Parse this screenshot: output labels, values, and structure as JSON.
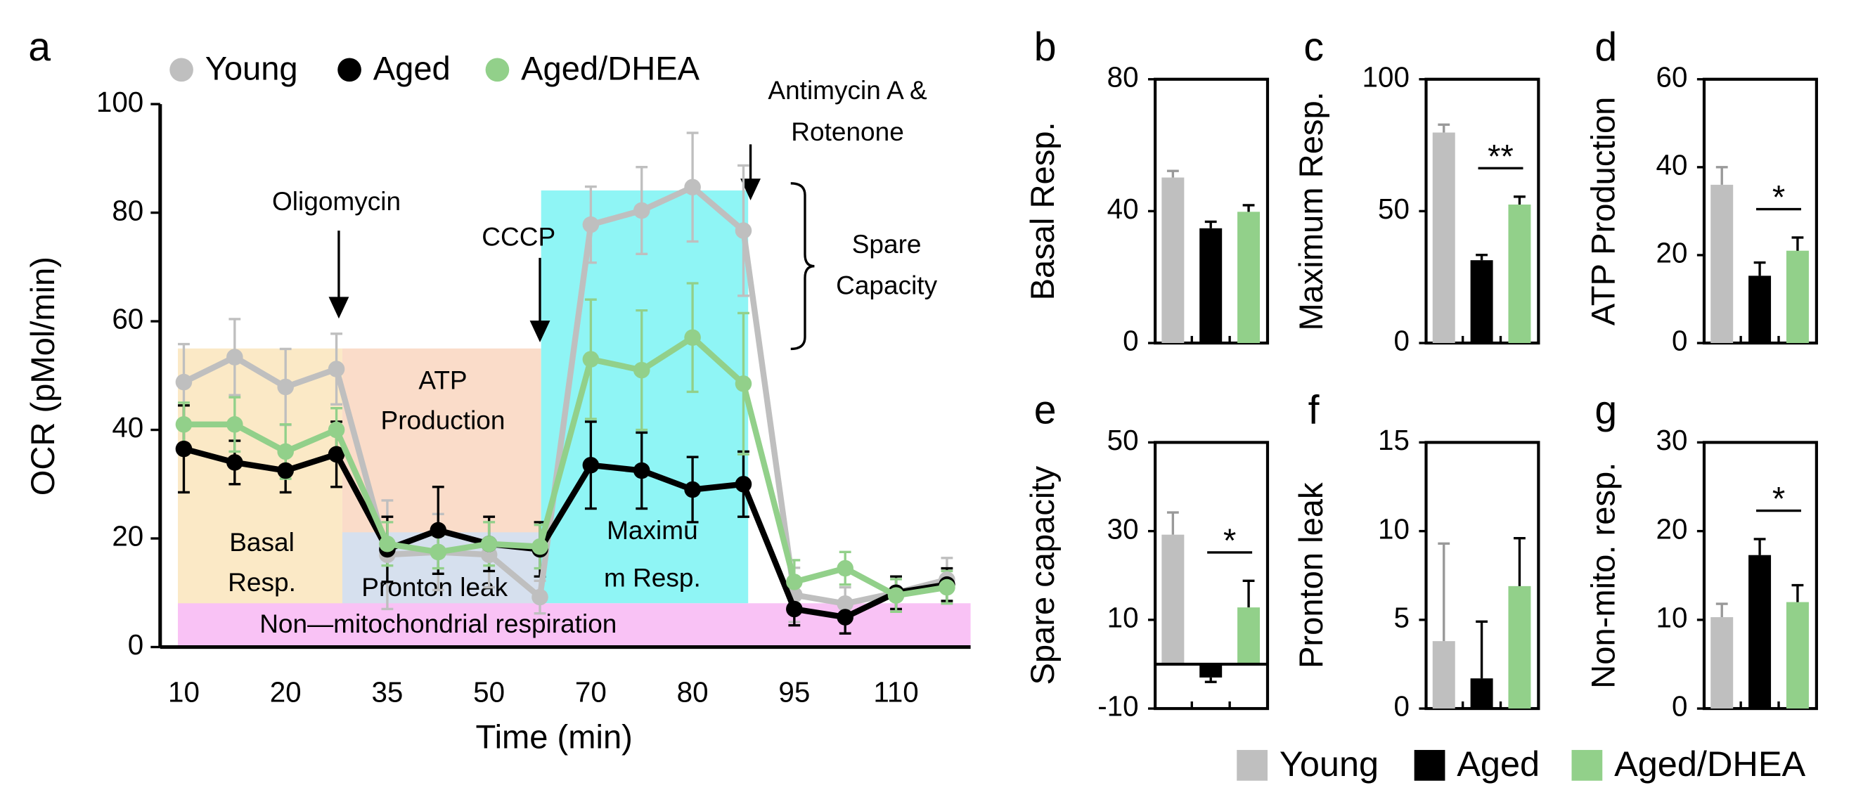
{
  "legend": {
    "series": [
      {
        "name": "Young",
        "color": "#bfbfbf"
      },
      {
        "name": "Aged",
        "color": "#000000"
      },
      {
        "name": "Aged/DHEA",
        "color": "#92d08a"
      }
    ]
  },
  "chart_data": [
    {
      "type": "line",
      "panel_label": "a",
      "x_label": "Time (min)",
      "y_label": "OCR (pMol/min)",
      "categories": [
        "10",
        null,
        "20",
        null,
        "35",
        null,
        "50",
        null,
        "70",
        null,
        "80",
        null,
        "95",
        null,
        "110",
        null
      ],
      "ylim": [
        0,
        100
      ],
      "yticks": [
        0,
        20,
        40,
        60,
        80,
        100
      ],
      "series": [
        {
          "name": "Young",
          "color": "#bfbfbf",
          "values": [
            48.8,
            53.4,
            47.9,
            51.2,
            17,
            17.5,
            17,
            9.2,
            77.8,
            80.4,
            84.7,
            76.7,
            9.6,
            8,
            10,
            12.4
          ],
          "errors": [
            7,
            7,
            7,
            6.5,
            10,
            7,
            6,
            3,
            7,
            8,
            10,
            12,
            5,
            3,
            3,
            4
          ]
        },
        {
          "name": "Aged",
          "color": "#000000",
          "values": [
            36.5,
            34,
            32.5,
            35.5,
            18,
            21.5,
            19,
            18,
            33.5,
            32.5,
            29,
            30,
            7,
            5.5,
            10,
            11.5
          ],
          "errors": [
            8,
            4,
            4,
            6,
            6,
            8,
            5,
            5,
            8,
            7,
            6,
            6,
            3,
            3,
            3,
            3
          ]
        },
        {
          "name": "Aged/DHEA",
          "color": "#92d08a",
          "values": [
            41,
            41,
            36,
            40,
            19,
            17.5,
            19,
            18.5,
            53,
            51,
            57,
            48.5,
            12,
            14.5,
            9.5,
            11
          ],
          "errors": [
            4,
            5,
            5,
            4,
            4,
            3,
            4,
            4,
            11,
            11,
            10,
            13,
            4,
            3,
            3,
            3
          ]
        }
      ],
      "annotations": {
        "oligomycin": "Oligomycin",
        "cccp": "CCCP",
        "antimycin": [
          "Antimycin A &",
          "Rotenone"
        ],
        "spare": [
          "Spare",
          "Capacity"
        ]
      },
      "regions": {
        "basal": [
          "Basal",
          "Resp."
        ],
        "atp": [
          "ATP",
          "Production"
        ],
        "leak": "Pronton leak",
        "maximum": [
          "Maximu",
          "m Resp."
        ],
        "non_mito": "Non—mitochondrial respiration"
      }
    },
    {
      "type": "bar",
      "panel_label": "b",
      "y_label": "Basal Resp.",
      "ylim": [
        0,
        80
      ],
      "yticks": [
        0,
        40,
        80
      ],
      "values": [
        50.2,
        34.8,
        39.8
      ],
      "errors": [
        2,
        2,
        2
      ]
    },
    {
      "type": "bar",
      "panel_label": "c",
      "y_label": "Maximum Resp.",
      "ylim": [
        0,
        100
      ],
      "yticks": [
        0,
        50,
        100
      ],
      "values": [
        79.8,
        31.4,
        52.5
      ],
      "errors": [
        3,
        2,
        3
      ],
      "significance": {
        "label": "**",
        "pair": [
          1,
          2
        ]
      }
    },
    {
      "type": "bar",
      "panel_label": "d",
      "y_label": "ATP Production",
      "ylim": [
        0,
        60
      ],
      "yticks": [
        0,
        20,
        40,
        60
      ],
      "values": [
        36,
        15.3,
        21
      ],
      "errors": [
        4,
        3,
        3
      ],
      "significance": {
        "label": "*",
        "pair": [
          1,
          2
        ]
      }
    },
    {
      "type": "bar",
      "panel_label": "e",
      "y_label": "Spare capacity",
      "ylim": [
        -10,
        50
      ],
      "yticks": [
        -10,
        10,
        30,
        50
      ],
      "values": [
        29.2,
        -3,
        12.8
      ],
      "errors": [
        5,
        1,
        6
      ],
      "significance": {
        "label": "*",
        "pair": [
          1,
          2
        ]
      }
    },
    {
      "type": "bar",
      "panel_label": "f",
      "y_label": "Pronton leak",
      "ylim": [
        0,
        15
      ],
      "yticks": [
        0,
        5,
        10,
        15
      ],
      "values": [
        3.8,
        1.7,
        6.9
      ],
      "errors": [
        5.5,
        3.2,
        2.7
      ]
    },
    {
      "type": "bar",
      "panel_label": "g",
      "y_label": "Non-mito. resp.",
      "ylim": [
        0,
        30
      ],
      "yticks": [
        0,
        10,
        20,
        30
      ],
      "values": [
        10.3,
        17.3,
        12
      ],
      "errors": [
        1.5,
        1.8,
        1.9
      ],
      "significance": {
        "label": "*",
        "pair": [
          1,
          2
        ]
      }
    }
  ]
}
